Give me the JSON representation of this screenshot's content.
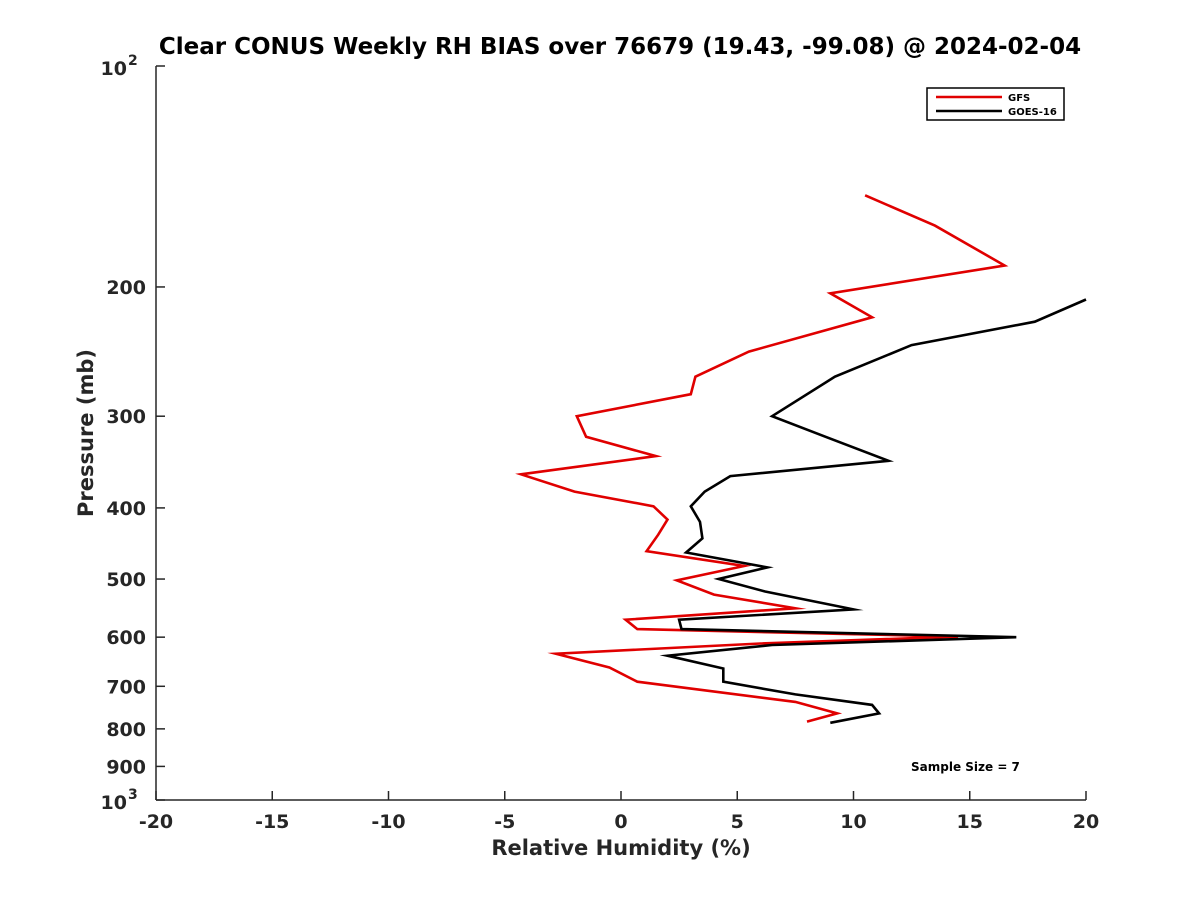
{
  "chart_data": {
    "type": "line",
    "title": "Clear CONUS Weekly RH BIAS over 76679 (19.43, -99.08) @ 2024-02-04",
    "xlabel": "Relative Humidity (%)",
    "ylabel": "Pressure (mb)",
    "xlim": [
      -20,
      20
    ],
    "ylim": [
      100,
      1000
    ],
    "y_scale": "log",
    "y_reversed": true,
    "x_ticks": [
      "-20",
      "-15",
      "-10",
      "-5",
      "0",
      "5",
      "10",
      "15",
      "20"
    ],
    "y_ticks": [
      {
        "value": 100,
        "base": "10",
        "exp": "2"
      },
      {
        "value": 200,
        "label": "200"
      },
      {
        "value": 300,
        "label": "300"
      },
      {
        "value": 400,
        "label": "400"
      },
      {
        "value": 500,
        "label": "500"
      },
      {
        "value": 600,
        "label": "600"
      },
      {
        "value": 700,
        "label": "700"
      },
      {
        "value": 800,
        "label": "800"
      },
      {
        "value": 900,
        "label": "900"
      },
      {
        "value": 1000,
        "base": "10",
        "exp": "3"
      }
    ],
    "legend_position": "top-right",
    "grid": false,
    "annotation": "Sample Size = 7",
    "series": [
      {
        "name": "GFS",
        "color": "#e00000",
        "points": [
          [
            10.5,
            150
          ],
          [
            13.5,
            165
          ],
          [
            16.5,
            187
          ],
          [
            9.0,
            204
          ],
          [
            10.8,
            220
          ],
          [
            5.5,
            245
          ],
          [
            3.2,
            265
          ],
          [
            3.0,
            280
          ],
          [
            -1.9,
            300
          ],
          [
            -1.5,
            320
          ],
          [
            1.5,
            340
          ],
          [
            -4.3,
            360
          ],
          [
            -2.0,
            380
          ],
          [
            1.4,
            398
          ],
          [
            2.0,
            415
          ],
          [
            1.6,
            435
          ],
          [
            1.1,
            458
          ],
          [
            5.3,
            480
          ],
          [
            2.4,
            502
          ],
          [
            4.0,
            525
          ],
          [
            7.5,
            548
          ],
          [
            0.2,
            568
          ],
          [
            0.7,
            585
          ],
          [
            14.5,
            599
          ],
          [
            6.0,
            612
          ],
          [
            -2.8,
            632
          ],
          [
            -0.5,
            660
          ],
          [
            0.7,
            690
          ],
          [
            7.5,
            735
          ],
          [
            9.3,
            762
          ],
          [
            8.0,
            782
          ]
        ]
      },
      {
        "name": "GOES-16",
        "color": "#000000",
        "points": [
          [
            20.0,
            208
          ],
          [
            17.8,
            223
          ],
          [
            12.5,
            240
          ],
          [
            9.2,
            265
          ],
          [
            6.5,
            300
          ],
          [
            8.8,
            320
          ],
          [
            11.5,
            345
          ],
          [
            4.7,
            362
          ],
          [
            3.6,
            380
          ],
          [
            3.0,
            398
          ],
          [
            3.4,
            418
          ],
          [
            3.5,
            440
          ],
          [
            2.8,
            460
          ],
          [
            6.3,
            482
          ],
          [
            4.2,
            500
          ],
          [
            6.2,
            520
          ],
          [
            10.0,
            550
          ],
          [
            2.5,
            568
          ],
          [
            2.6,
            585
          ],
          [
            17.0,
            600
          ],
          [
            6.5,
            615
          ],
          [
            2.0,
            636
          ],
          [
            4.4,
            662
          ],
          [
            4.4,
            690
          ],
          [
            7.5,
            718
          ],
          [
            10.8,
            742
          ],
          [
            11.1,
            762
          ],
          [
            9.0,
            785
          ]
        ]
      }
    ]
  }
}
